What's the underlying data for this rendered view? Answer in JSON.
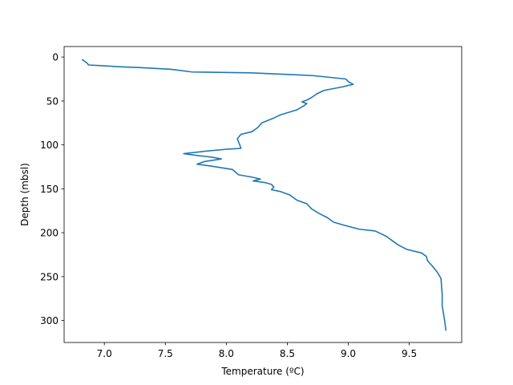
{
  "chart_data": {
    "type": "line",
    "title": "",
    "xlabel": "Temperature (ºC)",
    "ylabel": "Depth (mbsl)",
    "xlim": [
      6.67,
      9.93
    ],
    "ylim": [
      325,
      -12
    ],
    "y_inverted": true,
    "grid": false,
    "xticks": [
      7.0,
      7.5,
      8.0,
      8.5,
      9.0,
      9.5
    ],
    "xtick_labels": [
      "7.0",
      "7.5",
      "8.0",
      "8.5",
      "9.0",
      "9.5"
    ],
    "yticks": [
      0,
      50,
      100,
      150,
      200,
      250,
      300
    ],
    "ytick_labels": [
      "0",
      "50",
      "100",
      "150",
      "200",
      "250",
      "300"
    ],
    "series": [
      {
        "color": "#1f77b4",
        "points": [
          [
            6.82,
            3
          ],
          [
            6.84,
            5
          ],
          [
            6.86,
            7
          ],
          [
            6.87,
            9
          ],
          [
            7.0,
            10
          ],
          [
            7.12,
            11
          ],
          [
            7.3,
            12
          ],
          [
            7.55,
            14
          ],
          [
            7.72,
            17
          ],
          [
            8.2,
            18
          ],
          [
            8.7,
            21
          ],
          [
            8.98,
            25
          ],
          [
            9.0,
            28
          ],
          [
            9.04,
            31
          ],
          [
            8.95,
            34
          ],
          [
            8.8,
            38
          ],
          [
            8.74,
            42
          ],
          [
            8.7,
            46
          ],
          [
            8.66,
            49
          ],
          [
            8.62,
            51
          ],
          [
            8.66,
            53
          ],
          [
            8.63,
            56
          ],
          [
            8.58,
            60
          ],
          [
            8.51,
            63
          ],
          [
            8.44,
            66
          ],
          [
            8.38,
            70
          ],
          [
            8.29,
            75
          ],
          [
            8.26,
            80
          ],
          [
            8.21,
            85
          ],
          [
            8.12,
            88
          ],
          [
            8.09,
            93
          ],
          [
            8.11,
            100
          ],
          [
            8.12,
            104
          ],
          [
            8.0,
            105
          ],
          [
            7.84,
            107
          ],
          [
            7.65,
            110
          ],
          [
            7.76,
            112
          ],
          [
            7.88,
            114
          ],
          [
            7.96,
            116
          ],
          [
            7.82,
            119
          ],
          [
            7.76,
            122
          ],
          [
            7.87,
            124
          ],
          [
            8.05,
            128
          ],
          [
            8.1,
            134
          ],
          [
            8.22,
            137
          ],
          [
            8.28,
            139
          ],
          [
            8.22,
            141
          ],
          [
            8.32,
            143
          ],
          [
            8.37,
            145
          ],
          [
            8.39,
            148
          ],
          [
            8.37,
            151
          ],
          [
            8.44,
            153
          ],
          [
            8.52,
            157
          ],
          [
            8.58,
            163
          ],
          [
            8.66,
            167
          ],
          [
            8.7,
            173
          ],
          [
            8.76,
            178
          ],
          [
            8.83,
            183
          ],
          [
            8.88,
            188
          ],
          [
            8.98,
            192
          ],
          [
            9.09,
            196
          ],
          [
            9.22,
            198
          ],
          [
            9.31,
            204
          ],
          [
            9.37,
            210
          ],
          [
            9.41,
            214
          ],
          [
            9.48,
            219
          ],
          [
            9.6,
            223
          ],
          [
            9.64,
            227
          ],
          [
            9.65,
            232
          ],
          [
            9.69,
            238
          ],
          [
            9.73,
            245
          ],
          [
            9.76,
            252
          ],
          [
            9.77,
            270
          ],
          [
            9.77,
            283
          ],
          [
            9.79,
            300
          ],
          [
            9.8,
            311
          ]
        ]
      }
    ]
  }
}
